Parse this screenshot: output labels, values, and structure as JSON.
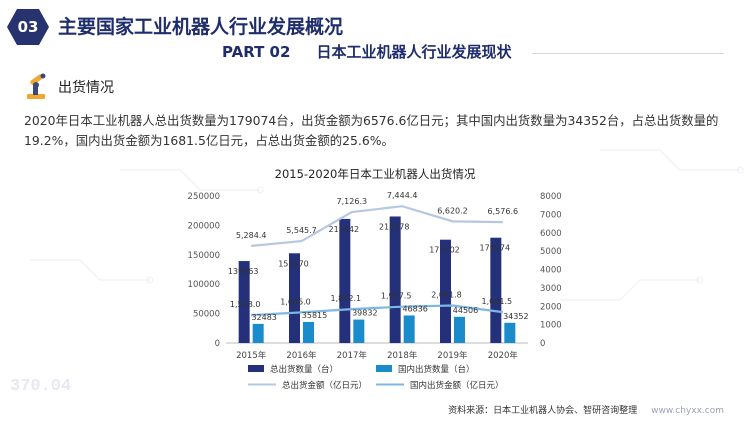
{
  "header": {
    "badge_number": "03",
    "title": "主要国家工业机器人行业发展概况",
    "part_label": "PART 02",
    "part_title": "日本工业机器人行业发展现状"
  },
  "section": {
    "icon": "robot-arm-icon",
    "title": "出货情况"
  },
  "body_text": "2020年日本工业机器人总出货数量为179074台，出货金额为6576.6亿日元；其中国内出货数量为34352台，占总出货数量的19.2%，国内出货金额为1681.5亿日元，占总出货金额的25.6%。",
  "background_watermark": "370.04",
  "chart_data": {
    "type": "bar",
    "title": "2015-2020年日本工业机器人出货情况",
    "categories": [
      "2015年",
      "2016年",
      "2017年",
      "2018年",
      "2019年",
      "2020年"
    ],
    "y_left": {
      "min": 0,
      "max": 250000,
      "ticks": [
        "0",
        "50000",
        "100000",
        "150000",
        "200000",
        "250000"
      ]
    },
    "y_right": {
      "min": 0,
      "max": 8000,
      "ticks": [
        "0",
        "1000",
        "2000",
        "3000",
        "4000",
        "5000",
        "6000",
        "7000",
        "8000"
      ]
    },
    "series": [
      {
        "name": "总出货数量（台）",
        "kind": "bar",
        "axis": "left",
        "color": "#24307a",
        "values": [
          139363,
          152570,
          211042,
          215178,
          175702,
          179074
        ],
        "labels": [
          "139363",
          "152570",
          "211042",
          "215178",
          "175702",
          "179074"
        ]
      },
      {
        "name": "国内出货数量（台）",
        "kind": "bar",
        "axis": "left",
        "color": "#1a8ccc",
        "values": [
          32483,
          35815,
          39832,
          46836,
          44506,
          34352
        ],
        "labels": [
          "32483",
          "35815",
          "39832",
          "46836",
          "44506",
          "34352"
        ]
      },
      {
        "name": "总出货金额（亿日元）",
        "kind": "line",
        "axis": "right",
        "color": "#b6c7e0",
        "values": [
          5284.4,
          5545.7,
          7126.3,
          7444.4,
          6620.2,
          6576.6
        ],
        "labels": [
          "5,284.4",
          "5,545.7",
          "7,126.3",
          "7,444.4",
          "6,620.2",
          "6,576.6"
        ]
      },
      {
        "name": "国内出货金额（亿日元）",
        "kind": "line",
        "axis": "right",
        "color": "#7fb6e3",
        "values": [
          1518.0,
          1666.0,
          1842.1,
          1977.5,
          2041.8,
          1681.5
        ],
        "labels": [
          "1,518.0",
          "1,666.0",
          "1,842.1",
          "1,977.5",
          "2,041.8",
          "1,681.5"
        ]
      }
    ],
    "legend_position": "bottom",
    "grid": false
  },
  "footer": {
    "source": "资料来源：日本工业机器人协会、智研咨询整理",
    "url": "www.chyxx.com"
  },
  "colors": {
    "accent": "#1f2d6b",
    "badge": "#27336f"
  }
}
